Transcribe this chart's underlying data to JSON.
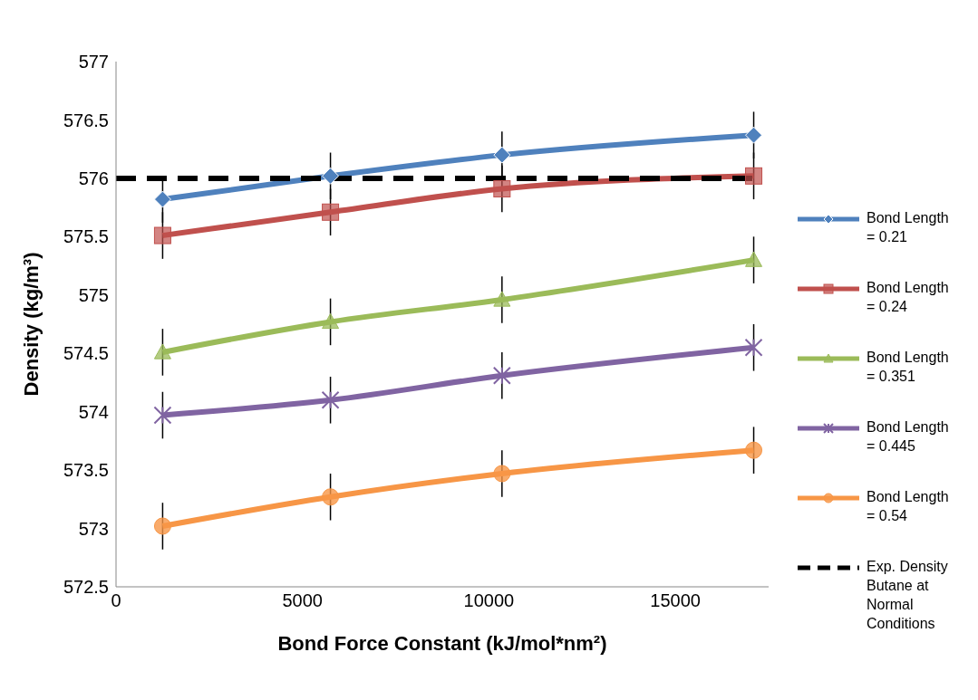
{
  "chart_data": {
    "type": "line",
    "xlabel": "Bond Force Constant (kJ/mol*nm²)",
    "ylabel": "Density (kg/m³)",
    "xlim": [
      0,
      17500
    ],
    "xticks": [
      0,
      5000,
      10000,
      15000
    ],
    "ylim": [
      572.5,
      577
    ],
    "yticks": [
      572.5,
      573,
      573.5,
      574,
      574.5,
      575,
      575.5,
      576,
      576.5,
      577
    ],
    "grid": false,
    "legend": "right",
    "line_style": "solid",
    "x": [
      1250,
      5750,
      10350,
      17100
    ],
    "series": [
      {
        "name": "Bond Length = 0.21",
        "color": "#4f81bd",
        "marker": "diamond",
        "values": [
          575.82,
          576.02,
          576.2,
          576.37
        ],
        "errors": [
          0.2,
          0.2,
          0.2,
          0.2
        ]
      },
      {
        "name": "Bond Length = 0.24",
        "color": "#c0504d",
        "marker": "square",
        "values": [
          575.51,
          575.71,
          575.91,
          576.02
        ],
        "errors": [
          0.2,
          0.2,
          0.2,
          0.2
        ]
      },
      {
        "name": "Bond Length = 0.351",
        "color": "#9bbb59",
        "marker": "triangle",
        "values": [
          574.51,
          574.77,
          574.96,
          575.3
        ],
        "errors": [
          0.2,
          0.2,
          0.2,
          0.2
        ]
      },
      {
        "name": "Bond Length = 0.445",
        "color": "#8064a2",
        "marker": "cross",
        "values": [
          573.97,
          574.1,
          574.31,
          574.55
        ],
        "errors": [
          0.2,
          0.2,
          0.2,
          0.2
        ]
      },
      {
        "name": "Bond Length = 0.54",
        "color": "#f79646",
        "marker": "circle",
        "values": [
          573.02,
          573.27,
          573.47,
          573.67
        ],
        "errors": [
          0.2,
          0.2,
          0.2,
          0.2
        ]
      },
      {
        "name": "Exp. Density Butane at Normal Conditions",
        "color": "#000000",
        "marker": "none",
        "line_style": "dashed",
        "x": [
          0,
          17100
        ],
        "values": [
          576,
          576
        ]
      }
    ]
  }
}
